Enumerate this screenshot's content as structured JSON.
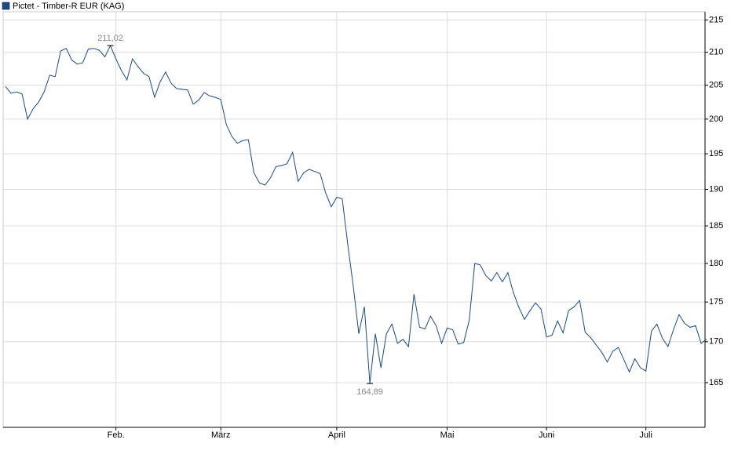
{
  "chart_data": {
    "type": "line",
    "title": "Pictet - Timber-R EUR (KAG)",
    "log_scale": true,
    "grid": true,
    "legend": "top-left",
    "ylim": [
      159.7,
      216.3
    ],
    "yticks": [
      165,
      170,
      175,
      180,
      185,
      190,
      195,
      200,
      205,
      210,
      215
    ],
    "xlim": [
      0,
      126
    ],
    "xticks": [
      {
        "value": 20,
        "label": "Feb."
      },
      {
        "value": 39,
        "label": "März"
      },
      {
        "value": 60,
        "label": "April"
      },
      {
        "value": 80,
        "label": "Mai"
      },
      {
        "value": 98,
        "label": "Juni"
      },
      {
        "value": 116,
        "label": "Juli"
      }
    ],
    "high_label": "211,02",
    "low_label": "164,89",
    "series": [
      {
        "name": "Pictet - Timber-R EUR (KAG)",
        "color": "#1a4a8a",
        "values": [
          204.8,
          203.8,
          204,
          203.7,
          200,
          201.5,
          202.5,
          204,
          206.5,
          206.3,
          210.2,
          210.6,
          208.8,
          208.2,
          208.4,
          210.5,
          210.6,
          210.3,
          209.3,
          211.02,
          209,
          207.2,
          205.8,
          209,
          207.8,
          206.8,
          206.3,
          203.2,
          205.5,
          207,
          205.3,
          204.5,
          204.4,
          204.3,
          202.2,
          202.8,
          203.9,
          203.4,
          203.2,
          202.9,
          199.2,
          197.5,
          196.5,
          196.9,
          197,
          192.3,
          190.9,
          190.6,
          191.6,
          193.2,
          193.3,
          193.6,
          195.2,
          191.1,
          192.3,
          192.8,
          192.5,
          192.2,
          189.5,
          187.6,
          188.9,
          188.7,
          182.5,
          177,
          171,
          174.4,
          164.89,
          171,
          166.8,
          171,
          172.2,
          169.8,
          170.3,
          169.4,
          176,
          171.8,
          171.6,
          173.2,
          172,
          169.8,
          171.7,
          171.5,
          169.7,
          169.9,
          172.7,
          180,
          179.8,
          178.4,
          177.7,
          178.8,
          177.6,
          178.8,
          176.2,
          174.3,
          172.8,
          173.9,
          174.9,
          174.1,
          170.6,
          170.8,
          172.6,
          171.1,
          173.9,
          174.4,
          175.2,
          171.2,
          170.5,
          169.6,
          168.7,
          167.5,
          168.8,
          169.3,
          167.8,
          166.3,
          167.9,
          166.8,
          166.4,
          171.3,
          172.2,
          170.4,
          169.4,
          171.5,
          173.4,
          172.3,
          171.8,
          172,
          169.8,
          170.3
        ]
      }
    ]
  }
}
